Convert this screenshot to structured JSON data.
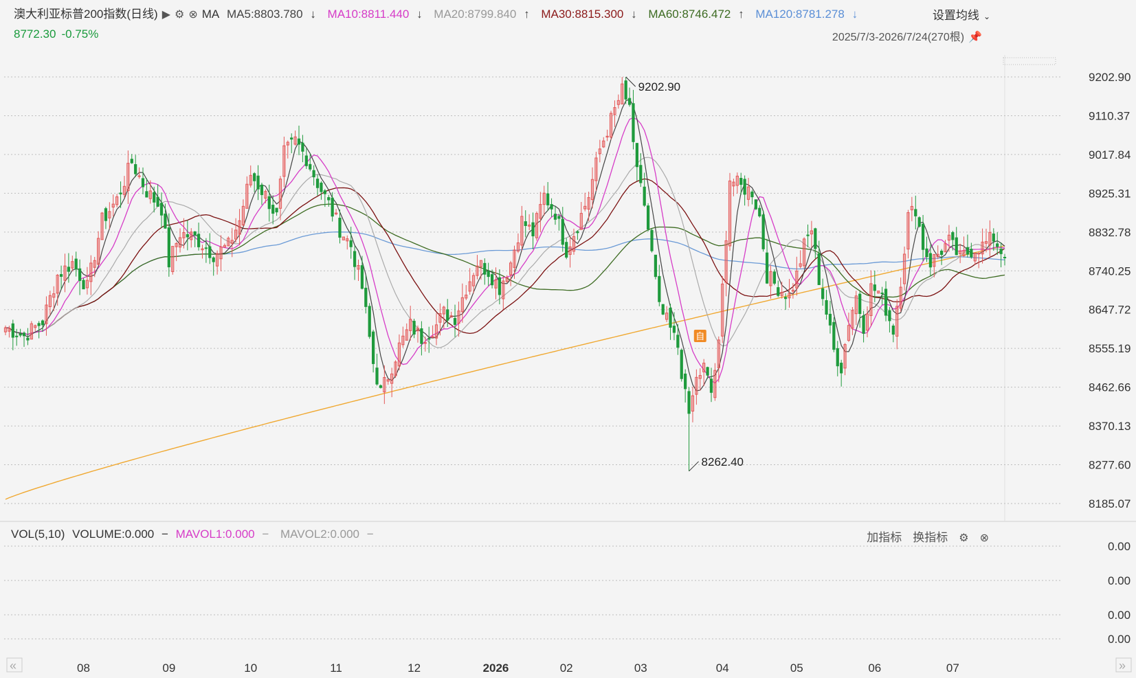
{
  "header": {
    "title": "澳大利亚标普200指数(日线)",
    "ma_label": "MA",
    "ma": [
      {
        "label": "MA5:8803.780",
        "arrow": "↓",
        "color": "#444444"
      },
      {
        "label": "MA10:8811.440",
        "arrow": "↓",
        "color": "#d63cc7"
      },
      {
        "label": "MA20:8799.840",
        "arrow": "↑",
        "color": "#9a9a9a"
      },
      {
        "label": "MA30:8815.300",
        "arrow": "↓",
        "color": "#8b1a1a"
      },
      {
        "label": "MA60:8746.472",
        "arrow": "↑",
        "color": "#3d6b22"
      },
      {
        "label": "MA120:8781.278",
        "arrow": "↓",
        "color": "#5b8fd6"
      }
    ],
    "price": "8772.30",
    "change": "-0.75%",
    "settings_label": "设置均线",
    "date_range": "2025/7/3-2026/7/24(270根)"
  },
  "volume_panel": {
    "vol_label": "VOL(5,10)",
    "volume": "VOLUME:0.000",
    "mavol1": "MAVOL1:0.000",
    "mavol2": "MAVOL2:0.000",
    "add_indicator": "加指标",
    "switch_indicator": "换指标",
    "axis": [
      "0.00",
      "0.00",
      "0.00",
      "0.00"
    ]
  },
  "colors": {
    "up": "#e45757",
    "down": "#1f9a3c",
    "ma5": "#444444",
    "ma10": "#d63cc7",
    "ma20": "#aaaaaa",
    "ma30": "#7a1010",
    "ma60": "#3d6b22",
    "ma120": "#6a9ad6",
    "ma250": "#f0a830"
  },
  "icons": [
    "play-icon",
    "gear-icon",
    "close-icon",
    "pin-icon",
    "scroll-left-icon",
    "scroll-right-icon"
  ],
  "chart_data": {
    "type": "candlestick",
    "y_ticks": [
      9202.9,
      9110.37,
      9017.84,
      8925.31,
      8832.78,
      8740.25,
      8647.72,
      8555.19,
      8462.66,
      8370.13,
      8277.6,
      8185.07
    ],
    "y_tick_labels": [
      "9202.90",
      "9110.37",
      "9017.84",
      "8925.31",
      "8832.78",
      "8740.25",
      "8647.72",
      "8555.19",
      "8462.66",
      "8370.13",
      "8277.60",
      "8185.07"
    ],
    "ylim": [
      8185.07,
      9202.9
    ],
    "x_labels": [
      {
        "label": "08",
        "index": 21
      },
      {
        "label": "09",
        "index": 44
      },
      {
        "label": "10",
        "index": 66
      },
      {
        "label": "11",
        "index": 89
      },
      {
        "label": "12",
        "index": 110
      },
      {
        "label": "2026",
        "index": 132
      },
      {
        "label": "02",
        "index": 151
      },
      {
        "label": "03",
        "index": 171
      },
      {
        "label": "04",
        "index": 193
      },
      {
        "label": "05",
        "index": 213
      },
      {
        "label": "06",
        "index": 234
      },
      {
        "label": "07",
        "index": 255
      }
    ],
    "annotations": [
      {
        "label": "9202.90",
        "index": 167,
        "value": 9202.9
      },
      {
        "label": "8262.40",
        "index": 184,
        "value": 8262.4
      }
    ],
    "marker": {
      "label": "自",
      "index": 187,
      "value": 8585
    },
    "close_anchors": [
      [
        0,
        8605
      ],
      [
        5,
        8585
      ],
      [
        10,
        8620
      ],
      [
        14,
        8730
      ],
      [
        18,
        8760
      ],
      [
        22,
        8700
      ],
      [
        26,
        8860
      ],
      [
        30,
        8910
      ],
      [
        34,
        9000
      ],
      [
        38,
        8930
      ],
      [
        42,
        8890
      ],
      [
        44,
        8760
      ],
      [
        47,
        8830
      ],
      [
        51,
        8820
      ],
      [
        56,
        8780
      ],
      [
        60,
        8800
      ],
      [
        63,
        8860
      ],
      [
        66,
        8970
      ],
      [
        70,
        8920
      ],
      [
        73,
        8870
      ],
      [
        75,
        9020
      ],
      [
        78,
        9050
      ],
      [
        81,
        9010
      ],
      [
        84,
        8950
      ],
      [
        87,
        8900
      ],
      [
        90,
        8840
      ],
      [
        93,
        8800
      ],
      [
        96,
        8700
      ],
      [
        99,
        8520
      ],
      [
        101,
        8450
      ],
      [
        103,
        8490
      ],
      [
        106,
        8560
      ],
      [
        109,
        8610
      ],
      [
        112,
        8580
      ],
      [
        116,
        8610
      ],
      [
        118,
        8640
      ],
      [
        121,
        8630
      ],
      [
        124,
        8700
      ],
      [
        127,
        8760
      ],
      [
        130,
        8740
      ],
      [
        133,
        8700
      ],
      [
        136,
        8760
      ],
      [
        139,
        8860
      ],
      [
        142,
        8830
      ],
      [
        145,
        8920
      ],
      [
        148,
        8880
      ],
      [
        151,
        8790
      ],
      [
        154,
        8850
      ],
      [
        157,
        8920
      ],
      [
        160,
        9030
      ],
      [
        163,
        9100
      ],
      [
        166,
        9170
      ],
      [
        168,
        9130
      ],
      [
        170,
        8970
      ],
      [
        172,
        8900
      ],
      [
        174,
        8780
      ],
      [
        176,
        8650
      ],
      [
        178,
        8620
      ],
      [
        181,
        8560
      ],
      [
        183,
        8440
      ],
      [
        184,
        8400
      ],
      [
        186,
        8480
      ],
      [
        188,
        8510
      ],
      [
        190,
        8450
      ],
      [
        192,
        8560
      ],
      [
        193,
        8700
      ],
      [
        195,
        8960
      ],
      [
        198,
        8940
      ],
      [
        201,
        8930
      ],
      [
        203,
        8870
      ],
      [
        205,
        8730
      ],
      [
        208,
        8700
      ],
      [
        211,
        8680
      ],
      [
        213,
        8730
      ],
      [
        215,
        8800
      ],
      [
        217,
        8840
      ],
      [
        219,
        8720
      ],
      [
        221,
        8640
      ],
      [
        223,
        8550
      ],
      [
        225,
        8510
      ],
      [
        227,
        8620
      ],
      [
        229,
        8680
      ],
      [
        231,
        8610
      ],
      [
        233,
        8700
      ],
      [
        235,
        8690
      ],
      [
        237,
        8650
      ],
      [
        239,
        8600
      ],
      [
        241,
        8720
      ],
      [
        243,
        8870
      ],
      [
        245,
        8890
      ],
      [
        247,
        8800
      ],
      [
        249,
        8760
      ],
      [
        251,
        8780
      ],
      [
        254,
        8810
      ],
      [
        257,
        8770
      ],
      [
        260,
        8790
      ],
      [
        263,
        8800
      ],
      [
        266,
        8820
      ],
      [
        269,
        8772.3
      ]
    ]
  }
}
